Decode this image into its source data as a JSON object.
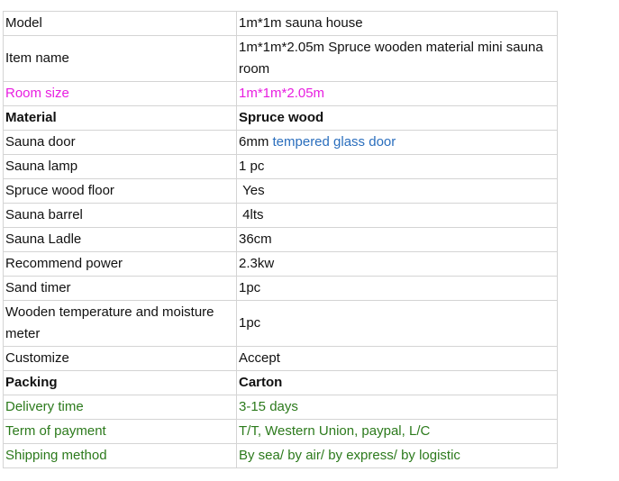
{
  "colors": {
    "magenta": "#e81ee0",
    "green": "#2c7a1c",
    "link_blue": "#2a6ebd"
  },
  "rows": [
    {
      "label": "Model",
      "value": "1m*1m sauna house"
    },
    {
      "label": "Item name",
      "value": "1m*1m*2.05m Spruce wooden material mini sauna room",
      "tall": true
    },
    {
      "label": "Room size",
      "value": "1m*1m*2.05m",
      "style": "magenta"
    },
    {
      "label": "Material",
      "value": "Spruce wood",
      "style": "bold"
    },
    {
      "label": "Sauna door",
      "value": "6mm ",
      "value_link": "tempered glass door"
    },
    {
      "label": "Sauna lamp",
      "value": "1 pc"
    },
    {
      "label": "Spruce wood floor",
      "value": " Yes"
    },
    {
      "label": "Sauna barrel",
      "value": " 4lts"
    },
    {
      "label": "Sauna Ladle",
      "value": "36cm"
    },
    {
      "label": "Recommend power",
      "value": "2.3kw"
    },
    {
      "label": "Sand timer",
      "value": "1pc"
    },
    {
      "label": "Wooden temperature and moisture meter",
      "value": "1pc",
      "tall": true
    },
    {
      "label": "Customize",
      "value": "Accept"
    },
    {
      "label": "Packing",
      "value": "Carton",
      "style": "bold"
    },
    {
      "label": "Delivery time",
      "value": "3-15 days",
      "style": "green"
    },
    {
      "label": "Term of payment",
      "value": "T/T, Western Union, paypal, L/C",
      "style": "green"
    },
    {
      "label": "Shipping method",
      "value": "By sea/ by air/ by express/ by logistic",
      "style": "green"
    }
  ]
}
